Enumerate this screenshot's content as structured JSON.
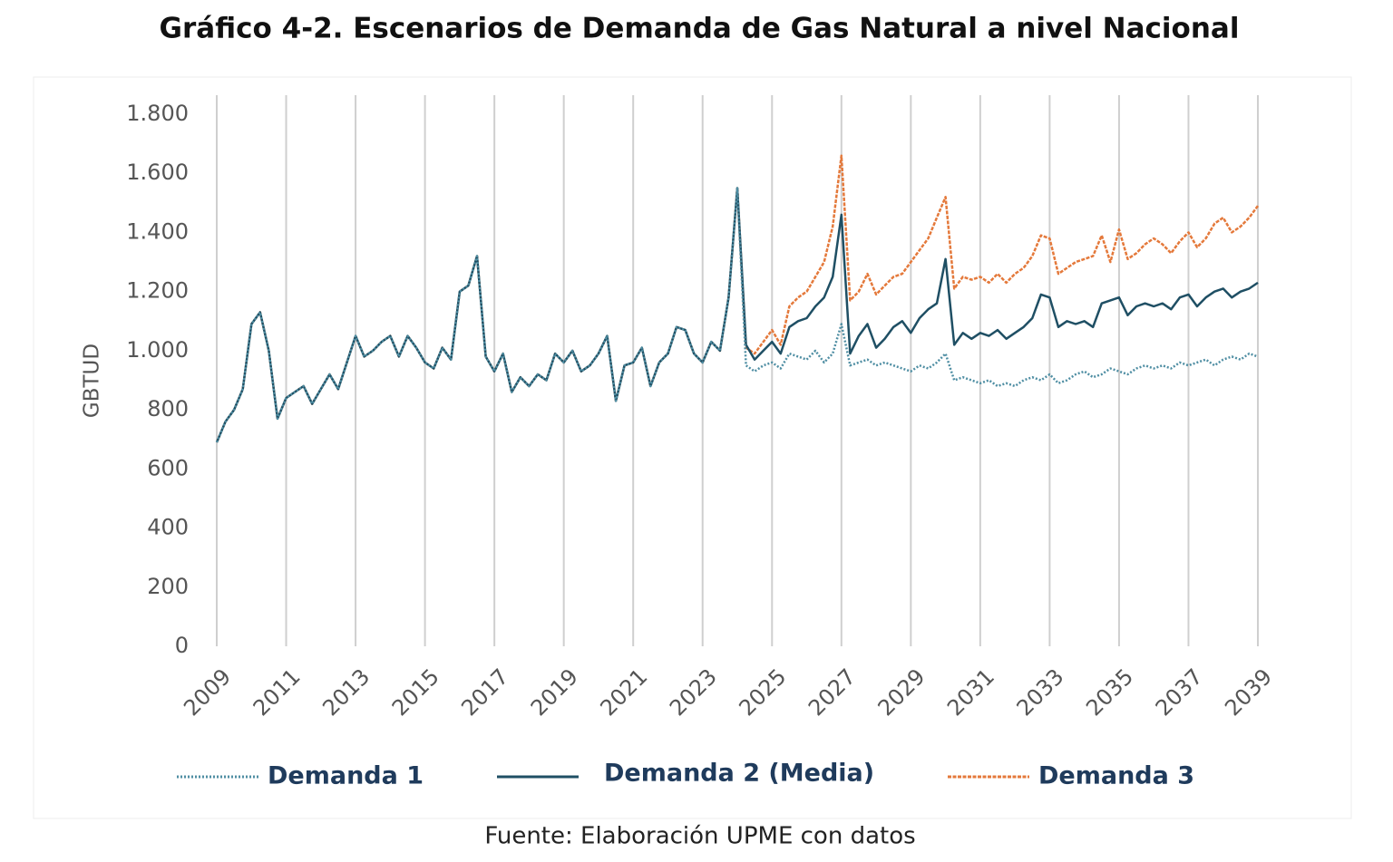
{
  "chart_data": {
    "type": "line",
    "title": "Gráfico 4-2. Escenarios de Demanda de Gas Natural a nivel Nacional",
    "ylabel": "GBTUD",
    "source": "Fuente: Elaboración UPME con datos",
    "xlim": [
      2009,
      2039
    ],
    "xticks": [
      2009,
      2011,
      2013,
      2015,
      2017,
      2019,
      2021,
      2023,
      2025,
      2027,
      2029,
      2031,
      2033,
      2035,
      2037,
      2039
    ],
    "ylim": [
      0,
      1800
    ],
    "yticks": [
      0,
      200,
      400,
      600,
      800,
      {
        "value": 1000,
        "label": "1.000"
      },
      {
        "value": 1200,
        "label": "1.200"
      },
      {
        "value": 1400,
        "label": "1.400"
      },
      {
        "value": 1600,
        "label": "1.600"
      },
      {
        "value": 1800,
        "label": "1.800"
      }
    ],
    "grid": "vertical",
    "legend": "bottom",
    "x": [
      2009,
      2009.25,
      2009.5,
      2009.75,
      2010,
      2010.25,
      2010.5,
      2010.75,
      2011,
      2011.25,
      2011.5,
      2011.75,
      2012,
      2012.25,
      2012.5,
      2012.75,
      2013,
      2013.25,
      2013.5,
      2013.75,
      2014,
      2014.25,
      2014.5,
      2014.75,
      2015,
      2015.25,
      2015.5,
      2015.75,
      2016,
      2016.25,
      2016.5,
      2016.75,
      2017,
      2017.25,
      2017.5,
      2017.75,
      2018,
      2018.25,
      2018.5,
      2018.75,
      2019,
      2019.25,
      2019.5,
      2019.75,
      2020,
      2020.25,
      2020.5,
      2020.75,
      2021,
      2021.25,
      2021.5,
      2021.75,
      2022,
      2022.25,
      2022.5,
      2022.75,
      2023,
      2023.25,
      2023.5,
      2023.75,
      2024,
      2024.25,
      2024.5,
      2024.75,
      2025,
      2025.25,
      2025.5,
      2025.75,
      2026,
      2026.25,
      2026.5,
      2026.75,
      2027,
      2027.25,
      2027.5,
      2027.75,
      2028,
      2028.25,
      2028.5,
      2028.75,
      2029,
      2029.25,
      2029.5,
      2029.75,
      2030,
      2030.25,
      2030.5,
      2030.75,
      2031,
      2031.25,
      2031.5,
      2031.75,
      2032,
      2032.25,
      2032.5,
      2032.75,
      2033,
      2033.25,
      2033.5,
      2033.75,
      2034,
      2034.25,
      2034.5,
      2034.75,
      2035,
      2035.25,
      2035.5,
      2035.75,
      2036,
      2036.25,
      2036.5,
      2036.75,
      2037,
      2037.25,
      2037.5,
      2037.75,
      2038,
      2038.25,
      2038.5,
      2038.75,
      2039
    ],
    "series": [
      {
        "name": "Demanda 1",
        "color": "#4f8ea3",
        "style": "dotted",
        "values": [
          690,
          760,
          800,
          870,
          1090,
          1130,
          1000,
          770,
          840,
          860,
          880,
          820,
          870,
          920,
          870,
          960,
          1050,
          980,
          1000,
          1030,
          1050,
          980,
          1050,
          1010,
          960,
          940,
          1010,
          970,
          1200,
          1220,
          1320,
          980,
          930,
          990,
          860,
          910,
          880,
          920,
          900,
          990,
          960,
          1000,
          930,
          950,
          990,
          1050,
          830,
          950,
          960,
          1010,
          880,
          960,
          990,
          1080,
          1070,
          990,
          960,
          1030,
          1000,
          1180,
          1550,
          950,
          930,
          950,
          960,
          940,
          990,
          980,
          970,
          1000,
          960,
          990,
          1090,
          950,
          960,
          970,
          950,
          960,
          950,
          940,
          930,
          950,
          940,
          960,
          990,
          900,
          910,
          900,
          890,
          900,
          880,
          890,
          880,
          900,
          910,
          900,
          920,
          890,
          900,
          920,
          930,
          910,
          920,
          940,
          930,
          920,
          940,
          950,
          940,
          950,
          940,
          960,
          950,
          960,
          970,
          950,
          970,
          980,
          970,
          990,
          980
        ]
      },
      {
        "name": "Demanda 2 (Media)",
        "color": "#1f4f64",
        "style": "solid",
        "values": [
          690,
          760,
          800,
          870,
          1090,
          1130,
          1000,
          770,
          840,
          860,
          880,
          820,
          870,
          920,
          870,
          960,
          1050,
          980,
          1000,
          1030,
          1050,
          980,
          1050,
          1010,
          960,
          940,
          1010,
          970,
          1200,
          1220,
          1320,
          980,
          930,
          990,
          860,
          910,
          880,
          920,
          900,
          990,
          960,
          1000,
          930,
          950,
          990,
          1050,
          830,
          950,
          960,
          1010,
          880,
          960,
          990,
          1080,
          1070,
          990,
          960,
          1030,
          1000,
          1180,
          1550,
          1020,
          970,
          1000,
          1030,
          990,
          1080,
          1100,
          1110,
          1150,
          1180,
          1250,
          1460,
          990,
          1050,
          1090,
          1010,
          1040,
          1080,
          1100,
          1060,
          1110,
          1140,
          1160,
          1310,
          1020,
          1060,
          1040,
          1060,
          1050,
          1070,
          1040,
          1060,
          1080,
          1110,
          1190,
          1180,
          1080,
          1100,
          1090,
          1100,
          1080,
          1160,
          1170,
          1180,
          1120,
          1150,
          1160,
          1150,
          1160,
          1140,
          1180,
          1190,
          1150,
          1180,
          1200,
          1210,
          1180,
          1200,
          1210,
          1230
        ]
      },
      {
        "name": "Demanda 3",
        "color": "#e4793b",
        "style": "dashed",
        "values": [
          690,
          760,
          800,
          870,
          1090,
          1130,
          1000,
          770,
          840,
          860,
          880,
          820,
          870,
          920,
          870,
          960,
          1050,
          980,
          1000,
          1030,
          1050,
          980,
          1050,
          1010,
          960,
          940,
          1010,
          970,
          1200,
          1220,
          1320,
          980,
          930,
          990,
          860,
          910,
          880,
          920,
          900,
          990,
          960,
          1000,
          930,
          950,
          990,
          1050,
          830,
          950,
          960,
          1010,
          880,
          960,
          990,
          1080,
          1070,
          990,
          960,
          1030,
          1000,
          1180,
          1550,
          1010,
          990,
          1030,
          1070,
          1020,
          1150,
          1180,
          1200,
          1250,
          1300,
          1420,
          1660,
          1170,
          1200,
          1260,
          1190,
          1220,
          1250,
          1260,
          1300,
          1340,
          1380,
          1450,
          1520,
          1210,
          1250,
          1240,
          1250,
          1230,
          1260,
          1230,
          1260,
          1280,
          1320,
          1390,
          1380,
          1260,
          1280,
          1300,
          1310,
          1320,
          1390,
          1300,
          1410,
          1310,
          1330,
          1360,
          1380,
          1360,
          1330,
          1370,
          1400,
          1350,
          1380,
          1430,
          1450,
          1400,
          1420,
          1450,
          1490
        ]
      }
    ]
  }
}
